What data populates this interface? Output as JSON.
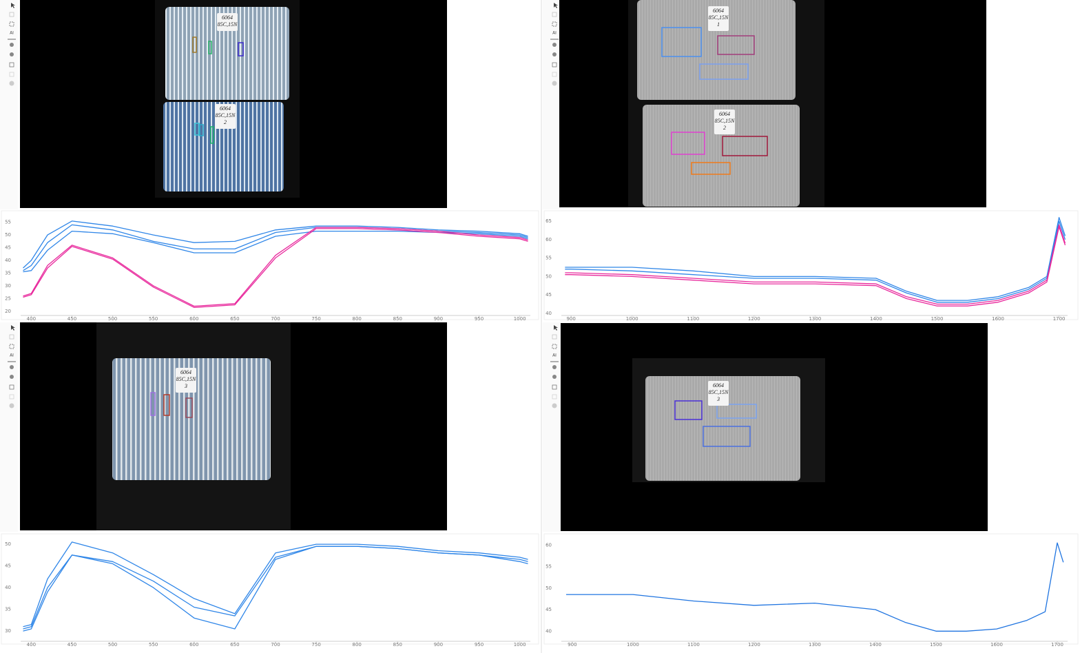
{
  "toolbar": {
    "ai": "AI"
  },
  "images": [
    {
      "labels": [
        [
          "6064",
          "85C,15N"
        ],
        [
          "6064",
          "85C,15N",
          "2"
        ]
      ]
    },
    {
      "labels": [
        [
          "6064",
          "85C,15N",
          "1"
        ],
        [
          "6064",
          "85C,15N",
          "2"
        ]
      ]
    },
    {
      "labels": [
        [
          "6064",
          "85C,15N",
          "3"
        ]
      ]
    },
    {
      "labels": [
        [
          "6064",
          "85C,15N",
          "3"
        ]
      ]
    }
  ],
  "chart_data": [
    {
      "type": "line",
      "x": [
        390,
        400,
        420,
        450,
        500,
        550,
        600,
        650,
        700,
        750,
        800,
        850,
        900,
        950,
        1000,
        1010
      ],
      "xlim": [
        387,
        1013
      ],
      "xticks": [
        400,
        450,
        500,
        550,
        600,
        650,
        700,
        750,
        800,
        850,
        900,
        950,
        1000
      ],
      "ylim": [
        18.6,
        57.9
      ],
      "yticks": [
        20,
        25,
        30,
        35,
        40,
        45,
        50,
        55
      ],
      "series": [
        {
          "color": "#2f86e8",
          "values": [
            37,
            40,
            50,
            55.5,
            53.5,
            50,
            47,
            47.5,
            52,
            53.5,
            53.5,
            53,
            52,
            51.5,
            50.5,
            49.5
          ]
        },
        {
          "color": "#2f86e8",
          "values": [
            36,
            38,
            47,
            54,
            52,
            47.5,
            44.5,
            44.5,
            51,
            53,
            53,
            52.5,
            51.5,
            51,
            50,
            49
          ]
        },
        {
          "color": "#2f86e8",
          "values": [
            35.5,
            36,
            44,
            51.5,
            50.5,
            47,
            43,
            43,
            49.5,
            51.5,
            51.5,
            51.5,
            51,
            50.5,
            49.5,
            48.5
          ]
        },
        {
          "color": "#e8289c",
          "values": [
            26,
            27,
            38,
            46,
            41,
            30,
            22,
            23,
            42,
            53,
            53,
            52.5,
            51.5,
            50,
            49,
            48
          ]
        },
        {
          "color": "#e8289c",
          "values": [
            25.5,
            26.5,
            37,
            45.5,
            40.5,
            29.5,
            21.5,
            22.5,
            41,
            52.5,
            52.5,
            52,
            51,
            49.5,
            48.5,
            47.5
          ]
        }
      ]
    },
    {
      "type": "line",
      "x": [
        890,
        900,
        1000,
        1100,
        1200,
        1300,
        1400,
        1450,
        1500,
        1550,
        1600,
        1650,
        1680,
        1700,
        1710
      ],
      "xlim": [
        884,
        1714
      ],
      "xticks": [
        900,
        1000,
        1100,
        1200,
        1300,
        1400,
        1500,
        1600,
        1700
      ],
      "ylim": [
        39.6,
        66.7
      ],
      "yticks": [
        40,
        45,
        50,
        55,
        60,
        65
      ],
      "series": [
        {
          "color": "#2f86e8",
          "values": [
            52.5,
            52.5,
            52.5,
            51.5,
            50,
            50,
            49.5,
            46,
            43.5,
            43.5,
            44.5,
            47,
            50,
            66,
            61
          ]
        },
        {
          "color": "#2f86e8",
          "values": [
            52,
            52,
            51.5,
            50.5,
            49.5,
            49.5,
            49,
            45.5,
            43,
            43,
            44,
            46.5,
            49.5,
            65,
            60
          ]
        },
        {
          "color": "#e8289c",
          "values": [
            51,
            51,
            50.5,
            49.5,
            48.5,
            48.5,
            48,
            44.5,
            42.5,
            42.5,
            43.5,
            46,
            49,
            64,
            59
          ]
        },
        {
          "color": "#e8289c",
          "values": [
            50.5,
            50.5,
            50,
            49,
            48,
            48,
            47.5,
            44,
            42,
            42,
            43,
            45.5,
            48.5,
            63.5,
            58.5
          ]
        }
      ]
    },
    {
      "type": "line",
      "x": [
        390,
        400,
        420,
        450,
        500,
        550,
        600,
        650,
        700,
        750,
        800,
        850,
        900,
        950,
        1000,
        1010
      ],
      "xlim": [
        387,
        1013
      ],
      "xticks": [
        400,
        450,
        500,
        550,
        600,
        650,
        700,
        750,
        800,
        850,
        900,
        950,
        1000
      ],
      "ylim": [
        27.8,
        51.6
      ],
      "yticks": [
        30,
        35,
        40,
        45,
        50
      ],
      "series": [
        {
          "color": "#2f86e8",
          "values": [
            31,
            31.5,
            42,
            50.5,
            48,
            43,
            37.5,
            34,
            48,
            50,
            50,
            49.5,
            48.5,
            48,
            47,
            46.5
          ]
        },
        {
          "color": "#2f86e8",
          "values": [
            30.5,
            31,
            40,
            47.5,
            46,
            41.5,
            35.5,
            33.5,
            47,
            49.5,
            49.5,
            49,
            48,
            47.5,
            46.5,
            46
          ]
        },
        {
          "color": "#2f86e8",
          "values": [
            30,
            30.5,
            39,
            47.5,
            45.5,
            40,
            33,
            30.5,
            46.5,
            49.5,
            49.5,
            49,
            48,
            47.5,
            46,
            45.5
          ]
        }
      ]
    },
    {
      "type": "line",
      "x": [
        890,
        900,
        1000,
        1100,
        1200,
        1300,
        1400,
        1450,
        1500,
        1550,
        1600,
        1650,
        1680,
        1700,
        1710
      ],
      "xlim": [
        882,
        1717
      ],
      "xticks": [
        900,
        1000,
        1100,
        1200,
        1300,
        1400,
        1500,
        1600,
        1700
      ],
      "ylim": [
        37.8,
        61.8
      ],
      "yticks": [
        40,
        45,
        50,
        55,
        60
      ],
      "series": [
        {
          "color": "#1f74e0",
          "values": [
            48.5,
            48.5,
            48.5,
            47,
            46,
            46.5,
            45,
            42,
            40,
            40,
            40.5,
            42.5,
            44.5,
            60.5,
            56
          ]
        }
      ]
    }
  ]
}
